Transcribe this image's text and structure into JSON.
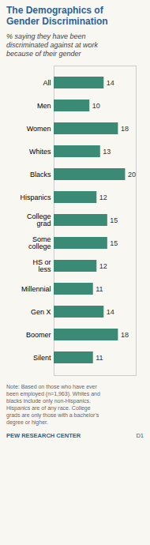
{
  "chart_data": {
    "type": "bar",
    "orientation": "horizontal",
    "title": "The Demographics of\nGender Discrimination",
    "subtitle": "% saying they have been\ndiscriminated against at work\nbecause of their gender",
    "categories": [
      "All",
      "Men",
      "Women",
      "Whites",
      "Blacks",
      "Hispanics",
      "College\ngrad",
      "Some\ncollege",
      "HS or\nless",
      "Millennial",
      "Gen X",
      "Boomer",
      "Silent"
    ],
    "values": [
      14,
      10,
      18,
      13,
      20,
      12,
      15,
      15,
      12,
      11,
      14,
      18,
      11
    ],
    "color": "#3a8a75",
    "xlim": [
      0,
      23
    ],
    "data_labels": true,
    "tick_labels": "y",
    "grid": false,
    "annotations": [
      "Note: Based on those who have ever\nbeen employed (n=1,963).  Whites and\nblacks include only non-Hispanics.\nHispanics are of any race. College\ngrads are only those with a bachelor's\ndegree or higher.",
      "PEW RESEARCH CENTER",
      "D1"
    ]
  }
}
